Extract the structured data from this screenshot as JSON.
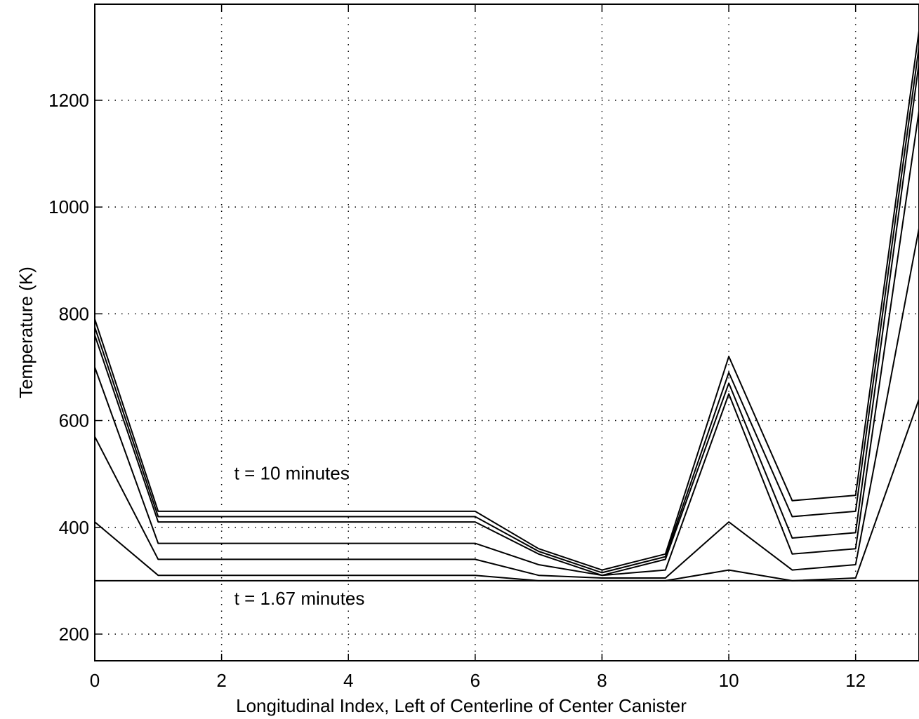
{
  "chart_data": {
    "type": "line",
    "xlabel": "Longitudinal Index, Left of Centerline of Center Canister",
    "ylabel": "Temperature (K)",
    "xlim": [
      0,
      13
    ],
    "ylim": [
      150,
      1380
    ],
    "xticks": [
      0,
      2,
      4,
      6,
      8,
      10,
      12
    ],
    "yticks": [
      200,
      400,
      600,
      800,
      1000,
      1200
    ],
    "grid": true,
    "grid_style": "dotted",
    "line_color": "#000000",
    "annotations": [
      {
        "text": "t = 10 minutes",
        "x": 2.2,
        "y": 490
      },
      {
        "text": "t = 1.67 minutes",
        "x": 2.2,
        "y": 255
      }
    ],
    "x": [
      0,
      1,
      6,
      7,
      8,
      9,
      10,
      11,
      12,
      13
    ],
    "series": [
      {
        "values": [
          300,
          300,
          300,
          300,
          300,
          300,
          300,
          300,
          300,
          300
        ]
      },
      {
        "values": [
          410,
          310,
          310,
          300,
          300,
          300,
          320,
          300,
          305,
          640
        ]
      },
      {
        "values": [
          570,
          340,
          340,
          310,
          305,
          305,
          410,
          320,
          330,
          960
        ]
      },
      {
        "values": [
          700,
          370,
          370,
          330,
          310,
          320,
          650,
          350,
          360,
          1180
        ]
      },
      {
        "values": [
          760,
          410,
          410,
          350,
          310,
          340,
          670,
          380,
          390,
          1270
        ]
      },
      {
        "values": [
          775,
          420,
          420,
          355,
          315,
          345,
          690,
          420,
          430,
          1300
        ]
      },
      {
        "values": [
          790,
          430,
          430,
          360,
          320,
          350,
          720,
          450,
          460,
          1330
        ]
      }
    ]
  }
}
